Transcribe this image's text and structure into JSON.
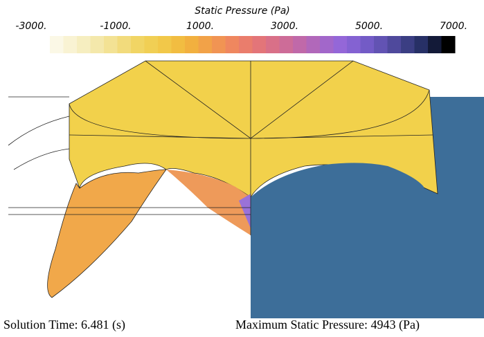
{
  "colorbar": {
    "title": "Static Pressure (Pa)",
    "ticks": [
      "-3000.",
      "-1000.",
      "1000.",
      "3000.",
      "5000.",
      "7000."
    ]
  },
  "footer": {
    "solution_time": "Solution Time: 6.481 (s)",
    "max_pressure": "Maximum Static Pressure: 4943 (Pa)"
  }
}
